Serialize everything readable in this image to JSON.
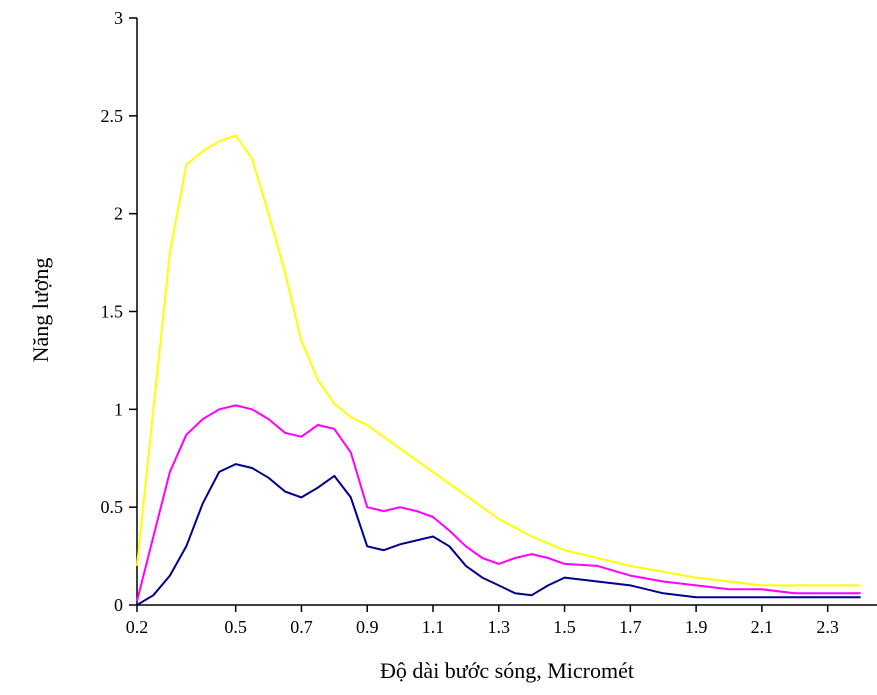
{
  "chart_data": {
    "type": "line",
    "title": "",
    "xlabel": "Độ dài bước sóng,  Micromét",
    "ylabel": "Năng lượng",
    "xlim": [
      0.2,
      2.45
    ],
    "ylim": [
      0,
      3
    ],
    "x_ticks": [
      0.2,
      0.5,
      0.7,
      0.9,
      1.1,
      1.3,
      1.5,
      1.7,
      1.9,
      2.1,
      2.3
    ],
    "x_tick_labels": [
      "0.2",
      "0.5",
      "0.7",
      "0.9",
      "1.1",
      "1.3",
      "1.5",
      "1.7",
      "1.9",
      "2.1",
      "2.3"
    ],
    "y_ticks": [
      0,
      0.5,
      1,
      1.5,
      2,
      2.5,
      3
    ],
    "y_tick_labels": [
      "0",
      "0.5",
      "1",
      "1.5",
      "2",
      "2.5",
      "3"
    ],
    "grid": false,
    "legend": "none",
    "series": [
      {
        "color": "#ffff00",
        "x": [
          0.2,
          0.25,
          0.3,
          0.35,
          0.4,
          0.45,
          0.5,
          0.55,
          0.6,
          0.65,
          0.7,
          0.75,
          0.8,
          0.85,
          0.9,
          1.0,
          1.1,
          1.2,
          1.3,
          1.4,
          1.5,
          1.6,
          1.7,
          1.8,
          1.9,
          2.0,
          2.1,
          2.2,
          2.3,
          2.4
        ],
        "y": [
          0.2,
          1.0,
          1.8,
          2.25,
          2.32,
          2.37,
          2.4,
          2.28,
          2.0,
          1.7,
          1.35,
          1.15,
          1.03,
          0.96,
          0.92,
          0.8,
          0.68,
          0.56,
          0.44,
          0.35,
          0.28,
          0.24,
          0.2,
          0.17,
          0.14,
          0.12,
          0.1,
          0.1,
          0.1,
          0.1
        ]
      },
      {
        "color": "#ff00ff",
        "x": [
          0.2,
          0.25,
          0.3,
          0.35,
          0.4,
          0.45,
          0.5,
          0.55,
          0.6,
          0.65,
          0.7,
          0.75,
          0.8,
          0.85,
          0.9,
          0.95,
          1.0,
          1.05,
          1.1,
          1.15,
          1.2,
          1.25,
          1.3,
          1.35,
          1.4,
          1.45,
          1.5,
          1.6,
          1.7,
          1.8,
          1.9,
          2.0,
          2.1,
          2.2,
          2.3,
          2.4
        ],
        "y": [
          0.02,
          0.35,
          0.68,
          0.87,
          0.95,
          1.0,
          1.02,
          1.0,
          0.95,
          0.88,
          0.86,
          0.92,
          0.9,
          0.78,
          0.5,
          0.48,
          0.5,
          0.48,
          0.45,
          0.38,
          0.3,
          0.24,
          0.21,
          0.24,
          0.26,
          0.24,
          0.21,
          0.2,
          0.15,
          0.12,
          0.1,
          0.08,
          0.08,
          0.06,
          0.06,
          0.06
        ]
      },
      {
        "color": "#00008b",
        "x": [
          0.2,
          0.25,
          0.3,
          0.35,
          0.4,
          0.45,
          0.5,
          0.55,
          0.6,
          0.65,
          0.7,
          0.75,
          0.8,
          0.85,
          0.9,
          0.95,
          1.0,
          1.05,
          1.1,
          1.15,
          1.2,
          1.25,
          1.3,
          1.35,
          1.4,
          1.45,
          1.5,
          1.6,
          1.7,
          1.8,
          1.9,
          2.0,
          2.1,
          2.2,
          2.3,
          2.4
        ],
        "y": [
          0.0,
          0.05,
          0.15,
          0.3,
          0.52,
          0.68,
          0.72,
          0.7,
          0.65,
          0.58,
          0.55,
          0.6,
          0.66,
          0.55,
          0.3,
          0.28,
          0.31,
          0.33,
          0.35,
          0.3,
          0.2,
          0.14,
          0.1,
          0.06,
          0.05,
          0.1,
          0.14,
          0.12,
          0.1,
          0.06,
          0.04,
          0.04,
          0.04,
          0.04,
          0.04,
          0.04
        ]
      }
    ]
  }
}
